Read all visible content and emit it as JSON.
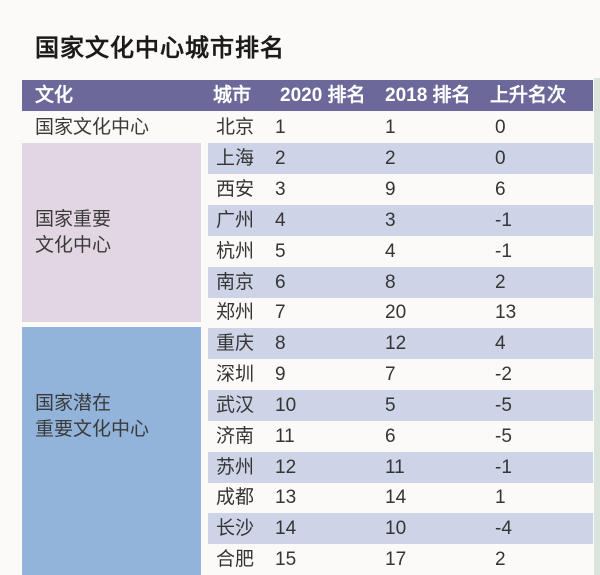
{
  "title": "国家文化中心城市排名",
  "header": {
    "col_culture": "文化",
    "col_city": "城市",
    "col_2020": "2020 排名",
    "col_2018": "2018 排名",
    "col_change": "上升名次"
  },
  "groups": [
    {
      "name": "国家文化中心",
      "line1": "国家文化中心",
      "line2": ""
    },
    {
      "name": "国家重要文化中心",
      "line1": "国家重要",
      "line2": "文化中心"
    },
    {
      "name": "国家潜在重要文化中心",
      "line1": "国家潜在",
      "line2": "重要文化中心"
    }
  ],
  "colors": {
    "header_bg": "#6c699a",
    "header_text": "#ffffff",
    "row_stripe": "#ced4e7",
    "group_important_bg": "#e3d6e3",
    "group_potential_bg": "#92b4da",
    "page_bg": "#fbfaf8",
    "right_edge_strip": "#d9e5dc",
    "body_text": "#353535"
  },
  "chart_data": {
    "type": "table",
    "title": "国家文化中心城市排名",
    "columns": [
      "文化",
      "城市",
      "2020 排名",
      "2018 排名",
      "上升名次"
    ],
    "rows": [
      [
        "国家文化中心",
        "北京",
        1,
        1,
        0
      ],
      [
        "国家重要文化中心",
        "上海",
        2,
        2,
        0
      ],
      [
        "国家重要文化中心",
        "西安",
        3,
        9,
        6
      ],
      [
        "国家重要文化中心",
        "广州",
        4,
        3,
        -1
      ],
      [
        "国家重要文化中心",
        "杭州",
        5,
        4,
        -1
      ],
      [
        "国家重要文化中心",
        "南京",
        6,
        8,
        2
      ],
      [
        "国家重要文化中心",
        "郑州",
        7,
        20,
        13
      ],
      [
        "国家潜在重要文化中心",
        "重庆",
        8,
        12,
        4
      ],
      [
        "国家潜在重要文化中心",
        "深圳",
        9,
        7,
        -2
      ],
      [
        "国家潜在重要文化中心",
        "武汉",
        10,
        5,
        -5
      ],
      [
        "国家潜在重要文化中心",
        "济南",
        11,
        6,
        -5
      ],
      [
        "国家潜在重要文化中心",
        "苏州",
        12,
        11,
        -1
      ],
      [
        "国家潜在重要文化中心",
        "成都",
        13,
        14,
        1
      ],
      [
        "国家潜在重要文化中心",
        "长沙",
        14,
        10,
        -4
      ],
      [
        "国家潜在重要文化中心",
        "合肥",
        15,
        17,
        2
      ]
    ]
  }
}
